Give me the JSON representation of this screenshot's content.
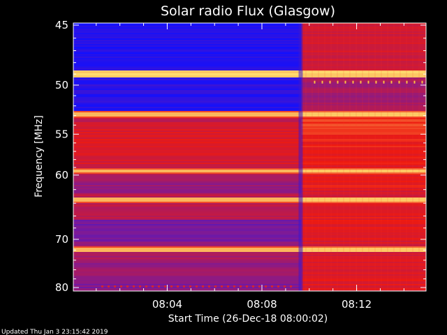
{
  "chart_data": {
    "type": "heatmap",
    "title": "Solar radio Flux (Glasgow)",
    "ylabel": "Frequency [MHz]",
    "xlabel": "Start Time (26-Dec-18 08:00:02)",
    "footer": "Updated Thu Jan  3 23:15:42 2019",
    "y_ticks": [
      "45",
      "50",
      "55",
      "60",
      "70",
      "80"
    ],
    "x_ticks": [
      "08:04",
      "08:08",
      "08:12"
    ],
    "ylim": [
      45,
      80
    ],
    "y_scale": "reciprocal",
    "xlim": [
      "08:00:02",
      "08:14:56"
    ],
    "transition_time": "08:09:40",
    "colormap": "blue-purple-red-yellow",
    "colors": {
      "low": "#1010ff",
      "mid": "#7a1a9a",
      "high": "#ee1a10",
      "peak": "#ffe070",
      "text": "#ffffff",
      "background": "#000000"
    },
    "bright_bands_mhz": [
      48.9,
      52.8,
      59.4,
      63.4,
      71.8
    ]
  }
}
